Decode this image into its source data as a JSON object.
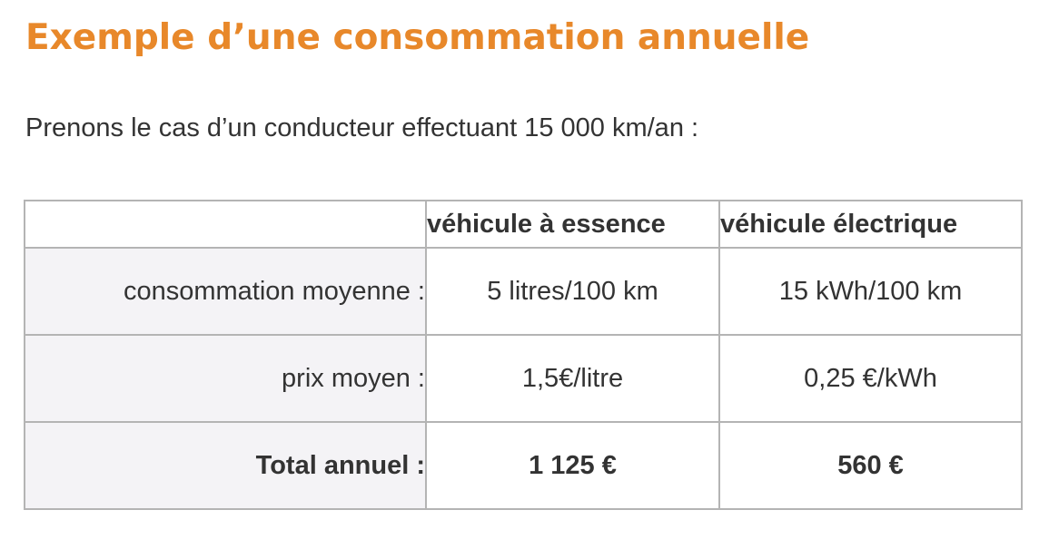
{
  "title": "Exemple d’une consommation annuelle",
  "intro": "Prenons le cas d’un conducteur effectuant 15 000 km/an :",
  "table": {
    "headers": [
      "",
      "véhicule à essence",
      "véhicule électrique"
    ],
    "rows": [
      {
        "label": "consommation moyenne :",
        "essence": "5 litres/100 km",
        "electrique": "15 kWh/100 km"
      },
      {
        "label": "prix moyen :",
        "essence": "1,5€/litre",
        "electrique": "0,25 €/kWh"
      },
      {
        "label": "Total annuel :",
        "essence": "1 125 €",
        "electrique": "560 €"
      }
    ]
  },
  "colors": {
    "title": "#e8882a",
    "text": "#333333",
    "border": "#b4b4b4",
    "label_background": "#f4f3f6"
  }
}
